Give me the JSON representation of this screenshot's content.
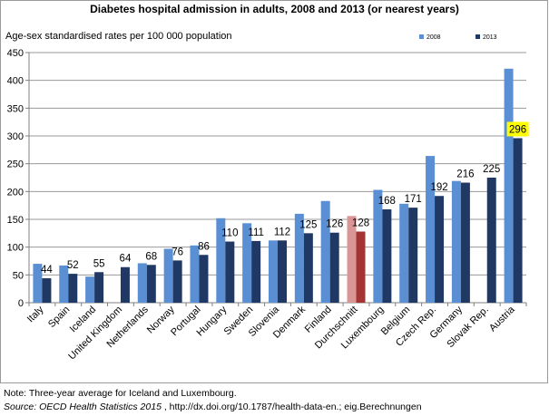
{
  "chart_data": {
    "type": "bar",
    "title": "Diabetes hospital admission in adults, 2008 and 2013 (or nearest years)",
    "ylabel": "Age-sex standardised rates per 100 000 population",
    "ylim": [
      0,
      450
    ],
    "yticks": [
      0,
      50,
      100,
      150,
      200,
      250,
      300,
      350,
      400,
      450
    ],
    "grid": true,
    "legend_position": "top-right",
    "categories": [
      "Italy",
      "Spain",
      "Iceland",
      "United Kingdom",
      "Netherlands",
      "Norway",
      "Portugal",
      "Hungary",
      "Sweden",
      "Slovenia",
      "Denmark",
      "Finland",
      "Durchschnitt",
      "Luxembourg",
      "Belgium",
      "Czech Rep.",
      "Germany",
      "Slovak Rep.",
      "Austria"
    ],
    "series": [
      {
        "name": "2008",
        "color": "#5b8fd4",
        "values": [
          70,
          67,
          47,
          null,
          71,
          97,
          103,
          152,
          143,
          112,
          160,
          183,
          156,
          203,
          178,
          264,
          219,
          null,
          421
        ]
      },
      {
        "name": "2013",
        "color": "#1f3864",
        "values": [
          44,
          52,
          55,
          64,
          68,
          76,
          86,
          110,
          111,
          112,
          125,
          126,
          128,
          168,
          171,
          192,
          216,
          225,
          296
        ]
      }
    ],
    "highlight": {
      "category": "Durchschnitt",
      "colors": {
        "2008": "#da9694",
        "2013": "#a63333"
      }
    },
    "data_labels": [
      "44",
      "52",
      "55",
      "64",
      "68",
      "76",
      "86",
      "110",
      "111",
      "112",
      "125",
      "126",
      "128",
      "168",
      "171",
      "192",
      "216",
      "225",
      "296"
    ],
    "emphasized_label": {
      "category": "Austria",
      "text": "296",
      "background": "#ffff00"
    }
  },
  "footer": {
    "note": "Note: Three-year average for Iceland and Luxembourg.",
    "source_italic": "Source: OECD Health Statistics 2015",
    "source_rest": " , http://dx.doi.org/10.1787/health-data-en.; eig.Berechnungen"
  }
}
